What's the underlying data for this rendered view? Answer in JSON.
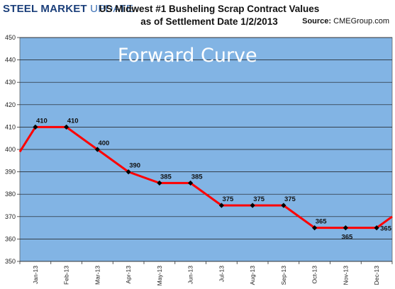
{
  "header": {
    "logo_bold": "STEEL MARKET",
    "logo_light": " UPDATE",
    "title_line1": "US Midwest #1 Busheling Scrap Contract Values",
    "title_line2": "as of Settlement Date 1/2/2013",
    "source_label": "Source:",
    "source_value": "CMEGroup.com"
  },
  "colors": {
    "plot_background": "#82b4e4",
    "line": "#ff0000",
    "marker": "#000000",
    "gridline": "#1a1a1a"
  },
  "chart_data": {
    "type": "line",
    "title": "Forward Curve",
    "xlabel": "",
    "ylabel": "",
    "categories": [
      "Jan-13",
      "Feb-13",
      "Mar-13",
      "Apr-13",
      "May-13",
      "Jun-13",
      "Jul-13",
      "Aug-13",
      "Sep-13",
      "Oct-13",
      "Nov-13",
      "Dec-13"
    ],
    "series": [
      {
        "values": [
          410,
          410,
          400,
          390,
          385,
          385,
          375,
          375,
          375,
          365,
          365,
          365
        ]
      }
    ],
    "data_labels": [
      "410",
      "410",
      "400",
      "390",
      "385",
      "385",
      "375",
      "375",
      "375",
      "365",
      "365",
      "365"
    ],
    "edge_values": {
      "left": 399,
      "right": 370
    },
    "ylim": [
      350,
      450
    ],
    "yticks": [
      350,
      360,
      370,
      380,
      390,
      400,
      410,
      420,
      430,
      440,
      450
    ],
    "grid": true,
    "legend": "none"
  }
}
